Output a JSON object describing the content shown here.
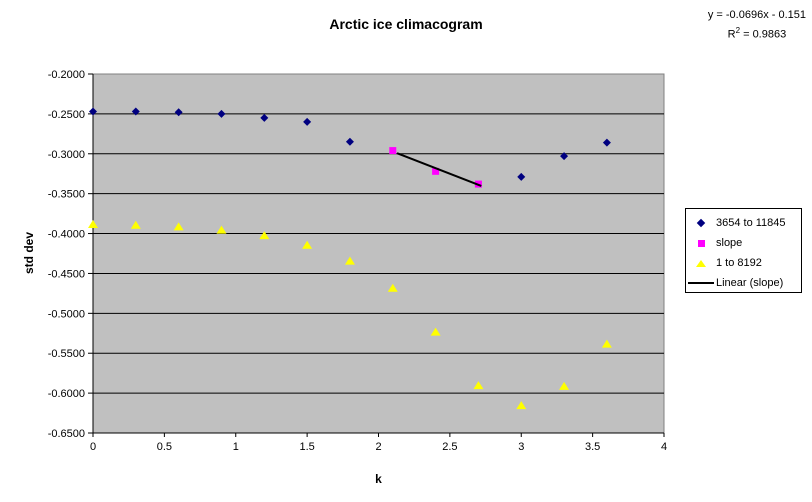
{
  "chart": {
    "title": "Arctic ice climacogram",
    "equation_line1": "y = -0.0696x - 0.151",
    "r2_prefix": "R",
    "r2_sup": "2",
    "r2_rest": " = 0.9863",
    "x_axis_title": "k",
    "y_axis_title": "std dev"
  },
  "legend": {
    "position": "right",
    "items": [
      {
        "label": "3654 to 11845",
        "marker": "diamond",
        "color": "#000080"
      },
      {
        "label": "slope",
        "marker": "square",
        "color": "#FF00FF"
      },
      {
        "label": "1 to 8192",
        "marker": "triangle",
        "color": "#FFFF00"
      },
      {
        "label": "Linear (slope)",
        "marker": "line",
        "color": "#000000"
      }
    ]
  },
  "chart_data": {
    "type": "scatter",
    "title": "Arctic ice climacogram",
    "xlabel": "k",
    "ylabel": "std dev",
    "xlim": [
      0,
      4
    ],
    "ylim": [
      -0.65,
      -0.2
    ],
    "grid": true,
    "legend_position": "right",
    "x_tick_labels": [
      "0",
      "0.5",
      "1",
      "1.5",
      "2",
      "2.5",
      "3",
      "3.5",
      "4"
    ],
    "y_tick_labels": [
      "-0.2000",
      "-0.2500",
      "-0.3000",
      "-0.3500",
      "-0.4000",
      "-0.4500",
      "-0.5000",
      "-0.5500",
      "-0.6000",
      "-0.6500"
    ],
    "colors": {
      "plot_bg": "#C0C0C0",
      "plot_border": "#808080",
      "gridline": "#000000",
      "axis": "#000000"
    },
    "series": [
      {
        "name": "3654 to 11845",
        "marker": "diamond",
        "color": "#000080",
        "points": [
          [
            0,
            -0.247
          ],
          [
            0.3,
            -0.247
          ],
          [
            0.6,
            -0.248
          ],
          [
            0.9,
            -0.25
          ],
          [
            1.2,
            -0.255
          ],
          [
            1.5,
            -0.26
          ],
          [
            1.8,
            -0.285
          ],
          [
            3.0,
            -0.329
          ],
          [
            3.3,
            -0.303
          ],
          [
            3.6,
            -0.286
          ]
        ]
      },
      {
        "name": "slope",
        "marker": "square",
        "color": "#FF00FF",
        "points": [
          [
            2.1,
            -0.296
          ],
          [
            2.4,
            -0.322
          ],
          [
            2.7,
            -0.338
          ]
        ]
      },
      {
        "name": "1 to 8192",
        "marker": "triangle",
        "color": "#FFFF00",
        "points": [
          [
            0,
            -0.388
          ],
          [
            0.3,
            -0.389
          ],
          [
            0.6,
            -0.391
          ],
          [
            0.9,
            -0.395
          ],
          [
            1.2,
            -0.402
          ],
          [
            1.5,
            -0.414
          ],
          [
            1.8,
            -0.434
          ],
          [
            2.1,
            -0.468
          ],
          [
            2.4,
            -0.523
          ],
          [
            2.7,
            -0.59
          ],
          [
            3.0,
            -0.615
          ],
          [
            3.3,
            -0.591
          ],
          [
            3.6,
            -0.538
          ]
        ]
      }
    ],
    "trendline": {
      "name": "Linear (slope)",
      "color": "#000000",
      "slope": -0.0696,
      "intercept": -0.151,
      "r_squared": 0.9863,
      "x_start": 2.13,
      "x_end": 2.72
    }
  }
}
